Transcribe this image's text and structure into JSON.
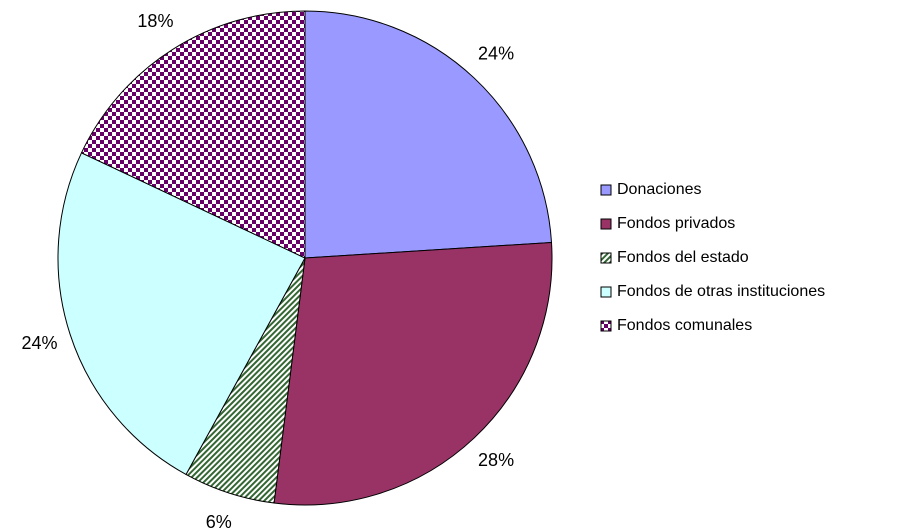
{
  "chart_data": {
    "type": "pie",
    "categories": [
      "Donaciones",
      "Fondos privados",
      "Fondos del estado",
      "Fondos de otras instituciones",
      "Fondos comunales"
    ],
    "values": [
      24,
      28,
      6,
      24,
      18
    ],
    "value_labels": [
      "24%",
      "28%",
      "6%",
      "24%",
      "18%"
    ],
    "colors": [
      "#9999ff",
      "#993366",
      "#336633",
      "#ccffff",
      "#660066"
    ],
    "patterns": [
      "solid",
      "solid",
      "diagonal",
      "solid",
      "checker"
    ],
    "legend": "right"
  }
}
